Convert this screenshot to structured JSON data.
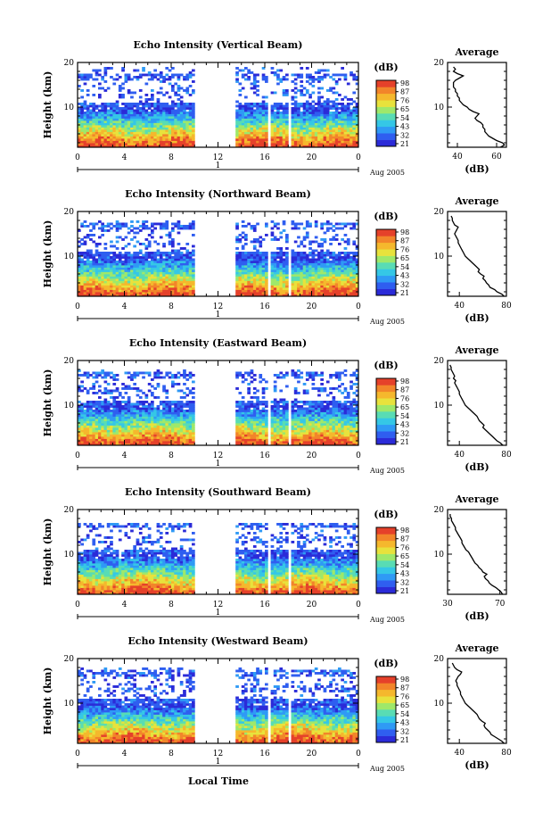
{
  "figure": {
    "xlabel": "Local Time",
    "date_label": "Aug 2005",
    "day_label": "1"
  },
  "colorbar": {
    "unit": "(dB)",
    "ticks": [
      "98",
      "87",
      "76",
      "65",
      "54",
      "43",
      "32",
      "21"
    ],
    "colors": [
      "#2b2bd8",
      "#2f5ef0",
      "#2f9af5",
      "#35c7e6",
      "#59dcb4",
      "#9fe86a",
      "#e8e23c",
      "#f5b82d",
      "#f2852a",
      "#e5412a"
    ]
  },
  "chart_data": [
    {
      "type": "heatmap",
      "title": "Echo Intensity (Vertical Beam)",
      "xlabel": "",
      "ylabel": "Height (km)",
      "xlim": [
        0,
        24
      ],
      "ylim": [
        1,
        20
      ],
      "xticks": [
        "0",
        "4",
        "8",
        "12",
        "16",
        "20",
        "0"
      ],
      "yticks": [
        "20",
        "10"
      ],
      "gaps": [
        [
          10,
          13.5
        ],
        [
          16.2,
          16.6
        ],
        [
          18.0,
          18.3
        ]
      ],
      "top_km": 19,
      "profile": {
        "title": "Average",
        "xlabel": "(dB)",
        "xlim": [
          35,
          65
        ],
        "xticks": [
          "40",
          "60"
        ],
        "yticks": [
          "20",
          "10"
        ],
        "heights": [
          1,
          1.5,
          2,
          2.5,
          3,
          3.5,
          4,
          4.5,
          5,
          5.5,
          6,
          6.5,
          7,
          7.5,
          8,
          8.5,
          9,
          9.5,
          10,
          10.5,
          11,
          11.5,
          12,
          12.5,
          13,
          13.5,
          14,
          14.5,
          15,
          15.5,
          16,
          16.5,
          17,
          17.5,
          18,
          18.5,
          19
        ],
        "values": [
          62,
          64,
          63,
          60,
          58,
          56,
          55,
          54,
          54,
          53,
          53,
          52,
          50,
          49,
          50,
          51,
          48,
          46,
          45,
          43,
          42,
          41,
          41,
          40,
          40,
          39,
          39,
          38,
          38,
          38,
          39,
          41,
          43,
          40,
          38,
          39,
          38
        ]
      }
    },
    {
      "type": "heatmap",
      "title": "Echo Intensity (Northward Beam)",
      "xlabel": "",
      "ylabel": "Height (km)",
      "xlim": [
        0,
        24
      ],
      "ylim": [
        1,
        20
      ],
      "xticks": [
        "0",
        "4",
        "8",
        "12",
        "16",
        "20",
        "0"
      ],
      "yticks": [
        "20",
        "10"
      ],
      "gaps": [
        [
          10,
          13.5
        ],
        [
          16.2,
          16.6
        ],
        [
          18.0,
          18.3
        ]
      ],
      "top_km": 18,
      "profile": {
        "title": "Average",
        "xlabel": "(dB)",
        "xlim": [
          30,
          80
        ],
        "xticks": [
          "40",
          "80"
        ],
        "yticks": [
          "20",
          "10"
        ],
        "heights": [
          1,
          1.5,
          2,
          2.5,
          3,
          3.5,
          4,
          4.5,
          5,
          5.5,
          6,
          6.5,
          7,
          7.5,
          8,
          8.5,
          9,
          9.5,
          10,
          10.5,
          11,
          11.5,
          12,
          12.5,
          13,
          13.5,
          14,
          14.5,
          15,
          15.5,
          16,
          16.5,
          17,
          17.5,
          18,
          18.5,
          19
        ],
        "values": [
          78,
          76,
          72,
          70,
          66,
          65,
          63,
          62,
          60,
          61,
          58,
          56,
          57,
          55,
          53,
          51,
          49,
          47,
          45,
          44,
          43,
          42,
          41,
          40,
          39,
          39,
          38,
          37,
          36,
          37,
          38,
          39,
          36,
          35,
          34,
          34,
          33
        ]
      }
    },
    {
      "type": "heatmap",
      "title": "Echo Intensity (Eastward Beam)",
      "xlabel": "",
      "ylabel": "Height (km)",
      "xlim": [
        0,
        24
      ],
      "ylim": [
        1,
        20
      ],
      "xticks": [
        "0",
        "4",
        "8",
        "12",
        "16",
        "20",
        "0"
      ],
      "yticks": [
        "20",
        "10"
      ],
      "gaps": [
        [
          10,
          13.5
        ],
        [
          16.2,
          16.6
        ],
        [
          18.0,
          18.3
        ]
      ],
      "top_km": 18,
      "profile": {
        "title": "Average",
        "xlabel": "(dB)",
        "xlim": [
          30,
          80
        ],
        "xticks": [
          "40",
          "80"
        ],
        "yticks": [
          "20",
          "10"
        ],
        "heights": [
          1,
          1.5,
          2,
          2.5,
          3,
          3.5,
          4,
          4.5,
          5,
          5.5,
          6,
          6.5,
          7,
          7.5,
          8,
          8.5,
          9,
          9.5,
          10,
          10.5,
          11,
          11.5,
          12,
          12.5,
          13,
          13.5,
          14,
          14.5,
          15,
          15.5,
          16,
          16.5,
          17,
          17.5,
          18,
          18.5,
          19
        ],
        "values": [
          77,
          75,
          72,
          70,
          68,
          66,
          64,
          62,
          60,
          61,
          59,
          57,
          56,
          55,
          53,
          51,
          49,
          47,
          45,
          44,
          43,
          42,
          41,
          40,
          40,
          39,
          38,
          37,
          36,
          37,
          35,
          36,
          35,
          34,
          33,
          33,
          32
        ]
      }
    },
    {
      "type": "heatmap",
      "title": "Echo Intensity (Southward Beam)",
      "xlabel": "",
      "ylabel": "Height (km)",
      "xlim": [
        0,
        24
      ],
      "ylim": [
        1,
        20
      ],
      "xticks": [
        "0",
        "4",
        "8",
        "12",
        "16",
        "20",
        "0"
      ],
      "yticks": [
        "20",
        "10"
      ],
      "gaps": [
        [
          10,
          13.5
        ],
        [
          16.2,
          16.6
        ],
        [
          18.0,
          18.3
        ]
      ],
      "top_km": 17,
      "profile": {
        "title": "Average",
        "xlabel": "(dB)",
        "xlim": [
          30,
          75
        ],
        "xticks": [
          "30",
          "70"
        ],
        "yticks": [
          "20",
          "10"
        ],
        "heights": [
          1,
          1.5,
          2,
          2.5,
          3,
          3.5,
          4,
          4.5,
          5,
          5.5,
          6,
          6.5,
          7,
          7.5,
          8,
          8.5,
          9,
          9.5,
          10,
          10.5,
          11,
          11.5,
          12,
          12.5,
          13,
          13.5,
          14,
          14.5,
          15,
          15.5,
          16,
          16.5,
          17,
          17.5,
          18,
          18.5,
          19
        ],
        "values": [
          72,
          71,
          69,
          67,
          64,
          62,
          61,
          59,
          58,
          60,
          57,
          56,
          54,
          53,
          51,
          50,
          49,
          48,
          47,
          46,
          44,
          43,
          42,
          41,
          41,
          40,
          39,
          38,
          37,
          36,
          36,
          35,
          34,
          33,
          33,
          32,
          32
        ]
      }
    },
    {
      "type": "heatmap",
      "title": "Echo Intensity (Westward Beam)",
      "xlabel": "",
      "ylabel": "Height (km)",
      "xlim": [
        0,
        24
      ],
      "ylim": [
        1,
        20
      ],
      "xticks": [
        "0",
        "4",
        "8",
        "12",
        "16",
        "20",
        "0"
      ],
      "yticks": [
        "20",
        "10"
      ],
      "gaps": [
        [
          10,
          13.5
        ],
        [
          16.2,
          16.6
        ],
        [
          18.0,
          18.3
        ]
      ],
      "top_km": 18,
      "profile": {
        "title": "Average",
        "xlabel": "(dB)",
        "xlim": [
          30,
          80
        ],
        "xticks": [
          "40",
          "80"
        ],
        "yticks": [
          "20",
          "10"
        ],
        "heights": [
          1,
          1.5,
          2,
          2.5,
          3,
          3.5,
          4,
          4.5,
          5,
          5.5,
          6,
          6.5,
          7,
          7.5,
          8,
          8.5,
          9,
          9.5,
          10,
          10.5,
          11,
          11.5,
          12,
          12.5,
          13,
          13.5,
          14,
          14.5,
          15,
          15.5,
          16,
          16.5,
          17,
          17.5,
          18,
          18.5,
          19
        ],
        "values": [
          78,
          76,
          73,
          70,
          67,
          66,
          64,
          62,
          61,
          62,
          59,
          57,
          56,
          55,
          53,
          51,
          49,
          47,
          45,
          44,
          43,
          42,
          41,
          41,
          40,
          39,
          38,
          38,
          37,
          38,
          39,
          41,
          42,
          38,
          36,
          35,
          34
        ]
      }
    }
  ]
}
